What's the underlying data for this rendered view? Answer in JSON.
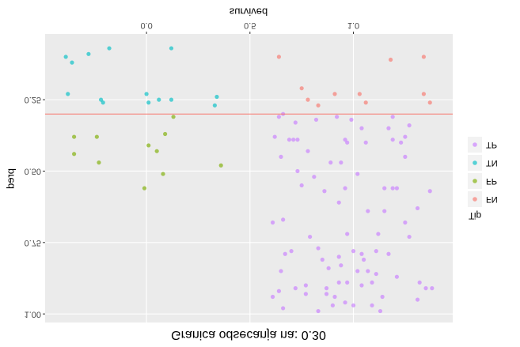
{
  "chart_data": {
    "type": "scatter",
    "title": "Granica odsecanja na: 0.30",
    "xlabel": "survived",
    "ylabel": "pred",
    "legend_title": "Tip",
    "legend": "right",
    "grid": true,
    "hline": 0.3,
    "hline_color": "#F8766D",
    "xlim": [
      -0.49,
      1.48
    ],
    "ylim": [
      0.02,
      1.03
    ],
    "xticks": [
      {
        "value": 0,
        "label": "0.0"
      },
      {
        "value": 0.5,
        "label": "0.5"
      },
      {
        "value": 1,
        "label": "1.0"
      }
    ],
    "yticks": [
      0.25,
      {
        "value": 0.5,
        "label": "0.50"
      },
      0.75,
      {
        "value": 1,
        "label": "1.00"
      }
    ],
    "series": [
      {
        "name": "FN",
        "color": "#F8766D",
        "x": [
          0.64,
          1.18,
          1.34,
          0.75,
          0.78,
          0.83,
          0.91,
          1.03,
          1.06,
          1.34,
          1.37
        ],
        "values": [
          0.1,
          0.11,
          0.1,
          0.21,
          0.25,
          0.27,
          0.23,
          0.23,
          0.26,
          0.23,
          0.26
        ]
      },
      {
        "name": "FP",
        "color": "#7CAE00",
        "x": [
          0.13,
          -0.35,
          -0.24,
          0.09,
          0.01,
          0.05,
          -0.35,
          -0.23,
          0.08,
          0.36,
          -0.01
        ],
        "values": [
          0.31,
          0.38,
          0.38,
          0.37,
          0.41,
          0.43,
          0.44,
          0.47,
          0.51,
          0.48,
          0.56
        ]
      },
      {
        "name": "TN",
        "color": "#00BFC4",
        "x": [
          -0.39,
          -0.36,
          -0.28,
          -0.18,
          0.12,
          -0.38,
          -0.22,
          -0.21,
          0.0,
          0.01,
          0.06,
          0.12,
          0.34,
          0.33
        ],
        "values": [
          0.1,
          0.12,
          0.09,
          0.07,
          0.07,
          0.23,
          0.25,
          0.26,
          0.23,
          0.26,
          0.25,
          0.25,
          0.24,
          0.27
        ]
      },
      {
        "name": "TP",
        "color": "#C77CFF",
        "x": [
          0.64,
          0.66,
          0.72,
          0.82,
          0.92,
          0.99,
          1.19,
          1.27,
          0.62,
          0.69,
          0.71,
          0.73,
          0.96,
          1.04,
          1.06,
          1.17,
          1.19,
          1.23,
          1.25,
          0.65,
          0.78,
          0.89,
          0.97,
          0.94,
          1.25,
          0.73,
          0.75,
          0.81,
          0.86,
          0.96,
          1.02,
          1.15,
          1.19,
          1.21,
          1.37,
          0.61,
          0.66,
          0.93,
          1.07,
          1.15,
          1.31,
          1.25,
          0.79,
          0.97,
          1.12,
          1.27,
          0.67,
          0.65,
          0.7,
          0.83,
          0.85,
          0.93,
          1.0,
          1.04,
          1.05,
          1.11,
          1.17,
          0.88,
          0.94,
          1.02,
          1.07,
          1.11,
          1.21,
          0.72,
          0.77,
          0.87,
          0.93,
          0.97,
          1.04,
          1.09,
          0.64,
          0.77,
          0.87,
          0.91,
          0.96,
          1.0,
          1.14,
          1.31,
          1.35,
          1.38,
          0.61,
          0.66,
          0.83,
          0.9,
          1.09,
          1.13,
          1.32
        ],
        "values": [
          0.31,
          0.3,
          0.33,
          0.32,
          0.31,
          0.32,
          0.31,
          0.34,
          0.38,
          0.39,
          0.39,
          0.39,
          0.39,
          0.35,
          0.4,
          0.35,
          0.39,
          0.4,
          0.38,
          0.45,
          0.43,
          0.47,
          0.4,
          0.47,
          0.45,
          0.5,
          0.55,
          0.52,
          0.57,
          0.56,
          0.51,
          0.56,
          0.56,
          0.56,
          0.57,
          0.68,
          0.67,
          0.61,
          0.64,
          0.64,
          0.63,
          0.68,
          0.73,
          0.72,
          0.72,
          0.73,
          0.79,
          0.85,
          0.78,
          0.77,
          0.81,
          0.8,
          0.78,
          0.79,
          0.81,
          0.78,
          0.79,
          0.84,
          0.83,
          0.85,
          0.85,
          0.86,
          0.87,
          0.91,
          0.9,
          0.91,
          0.89,
          0.89,
          0.9,
          0.89,
          0.92,
          0.93,
          0.93,
          0.94,
          0.96,
          0.97,
          0.94,
          0.95,
          0.91,
          0.91,
          0.94,
          0.98,
          0.99,
          0.97,
          0.97,
          0.99,
          0.89
        ]
      }
    ]
  }
}
